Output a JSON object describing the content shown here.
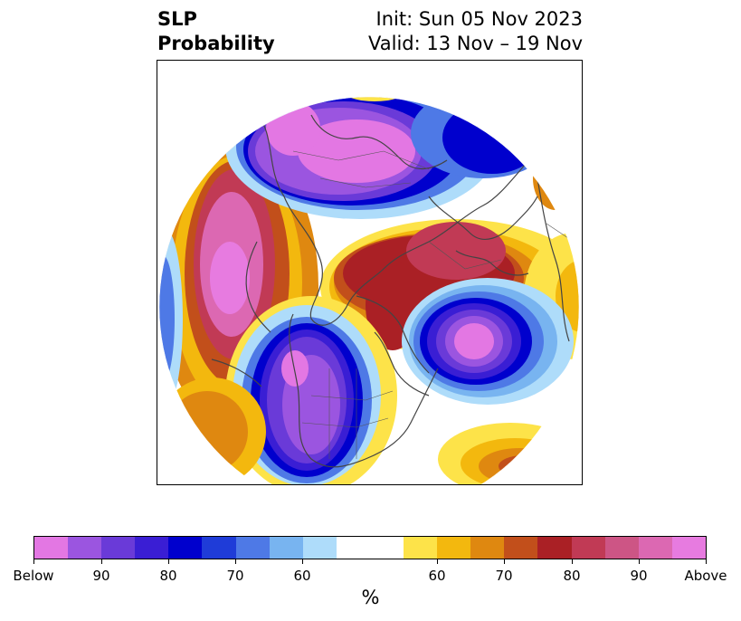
{
  "title": {
    "left_line1": "SLP",
    "left_line2": "Probability",
    "right_line1": "Init: Sun 05 Nov 2023",
    "right_line2": "Valid: 13 Nov – 19 Nov"
  },
  "colorbar": {
    "colors": [
      "#e377e3",
      "#9b55e0",
      "#6a3ad8",
      "#3a1ed4",
      "#0000cd",
      "#1f3cd8",
      "#4e79e6",
      "#78b4f0",
      "#aedcfa",
      "#ffffff",
      "#ffffff",
      "#fde349",
      "#f3b80e",
      "#df8810",
      "#c24f1b",
      "#aa2025",
      "#c13a55",
      "#cd5585",
      "#dc68b2",
      "#e77be0"
    ],
    "labels": [
      "Below",
      "90",
      "80",
      "70",
      "60",
      "60",
      "70",
      "80",
      "90",
      "Above"
    ],
    "unit": "%"
  },
  "map": {
    "projection": "polar stereographic (north pole)",
    "field": "SLP probability"
  }
}
